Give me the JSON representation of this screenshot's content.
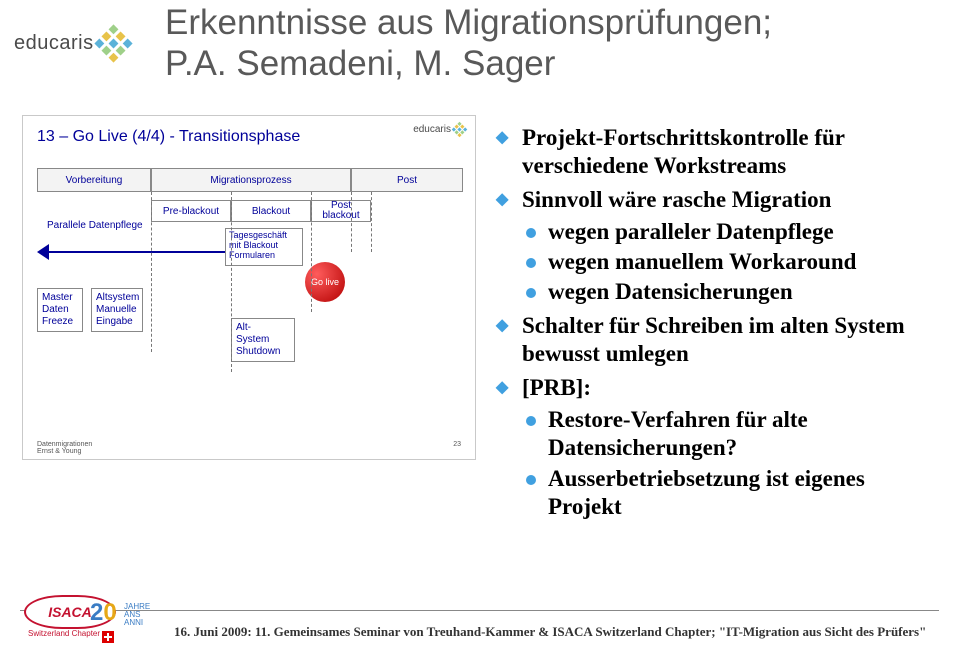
{
  "title": "Erkenntnisse aus Migrationsprüfungen;\nP.A. Semadeni, M. Sager",
  "logo": {
    "brand": "educaris",
    "dot_colors": [
      "#9fd089",
      "#e8c34a",
      "#5bb2d9",
      "#e8c34a",
      "#5bb2d9",
      "#9fd089",
      "#5bb2d9",
      "#9fd089",
      "#e8c34a"
    ]
  },
  "embed": {
    "title": "13 – Go Live (4/4) - Transitionsphase",
    "phases": {
      "vorbereitung": "Vorbereitung",
      "migrationsprozess": "Migrationsprozess",
      "post": "Post"
    },
    "sub": {
      "pre": "Pre-blackout",
      "blackout": "Blackout",
      "post": "Post blackout"
    },
    "darrow_label": "Parallele Datenpflege",
    "tagbox": "Tagesgeschäft mit Blackout Formularen",
    "golive": "Go live",
    "boxes": {
      "master": "Master\nDaten\nFreeze",
      "alts": "Altsystem\nManuelle\nEingabe",
      "altshut": "Alt-\nSystem\nShutdown"
    },
    "foot_left": "Datenmigrationen\nErnst & Young",
    "foot_right": "23",
    "colors": {
      "label": "#000099",
      "golive_from": "#ff5c5c",
      "golive_to": "#b30000",
      "border": "#888888"
    }
  },
  "bullets": [
    {
      "text": "Projekt-Fortschrittskontrolle für verschiedene Workstreams"
    },
    {
      "text": "Sinnvoll wäre rasche Migration",
      "children": [
        "wegen paralleler Datenpflege",
        "wegen manuellem Workaround",
        "wegen Datensicherungen"
      ]
    },
    {
      "text": "Schalter für Schreiben im alten System bewusst umlegen"
    },
    {
      "text": "[PRB]:",
      "children": [
        "Restore-Verfahren für alte Datensicherungen?",
        "Ausserbetriebsetzung ist eigenes Projekt"
      ]
    }
  ],
  "footer": {
    "text": "16. Juni 2009: 11. Gemeinsames Seminar von Treuhand-Kammer & ISACA Switzerland Chapter; \"IT-Migration aus Sicht des Prüfers\"",
    "isaca": "ISACA",
    "jahre": "JAHRE\nANS\nANNI",
    "chapter": "Switzerland Chapter",
    "colors": {
      "isaca_red": "#c41230",
      "twenty_blue": "#3a7cc4",
      "twenty_gold": "#e6a817"
    }
  }
}
